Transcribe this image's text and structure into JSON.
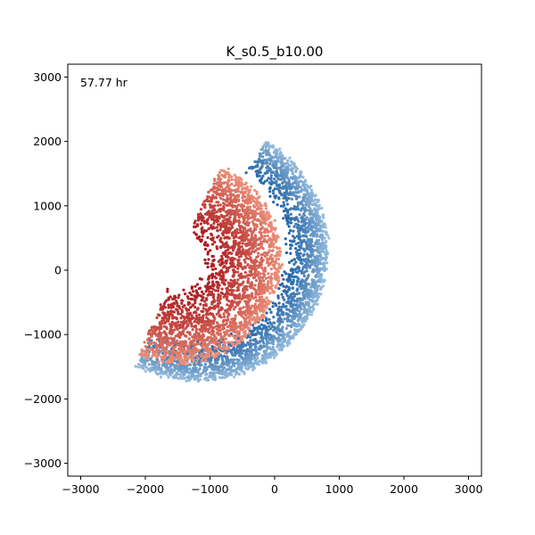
{
  "chart_data": {
    "type": "scatter",
    "title": "K_s0.5_b10.00",
    "annotation": "57.77 hr",
    "xlabel": "",
    "ylabel": "",
    "xlim": [
      -3200,
      3200
    ],
    "ylim": [
      -3200,
      3200
    ],
    "xticks": [
      -3000,
      -2000,
      -1000,
      0,
      1000,
      2000,
      3000
    ],
    "yticks": [
      -3000,
      -2000,
      -1000,
      0,
      1000,
      2000,
      3000
    ],
    "grid": false,
    "series": [
      {
        "color_light": "#b7d4ea",
        "color_dark": "#08519c",
        "arc_center": [
          -1200,
          300
        ],
        "arc_radius_inner": 1380,
        "arc_radius_outer": 2020,
        "arc_angle_range_deg": [
          -118,
          58
        ],
        "point_count": 2600
      },
      {
        "color_light": "#fcae91",
        "color_dark": "#a50f15",
        "arc_center": [
          -1500,
          150
        ],
        "arc_radius_inner": 420,
        "arc_radius_outer": 1600,
        "arc_angle_range_deg": [
          -112,
          66
        ],
        "point_count": 2600
      }
    ]
  }
}
